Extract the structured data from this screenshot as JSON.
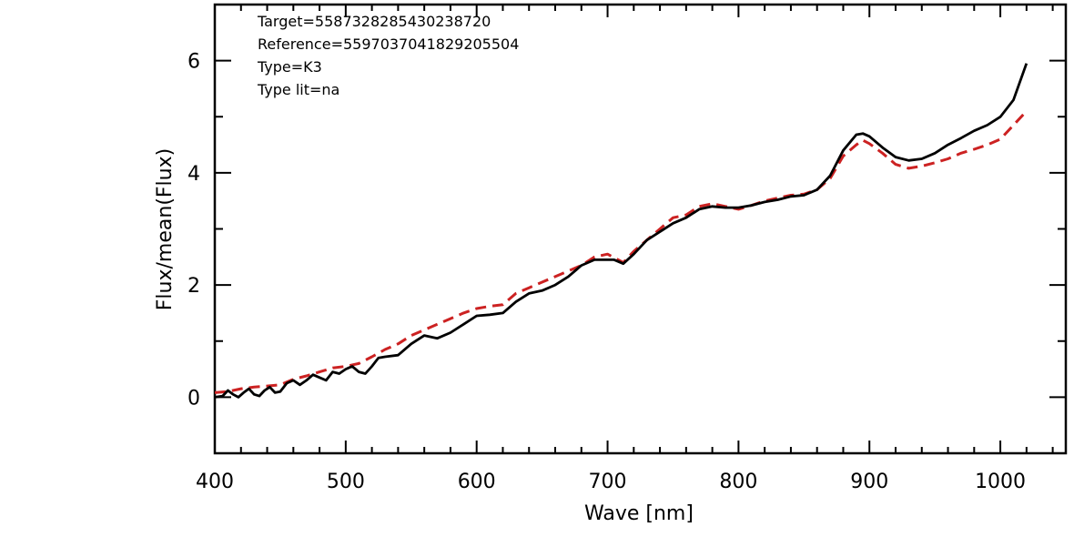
{
  "chart_data": {
    "type": "line",
    "title": "",
    "xlabel": "Wave [nm]",
    "ylabel": "Flux/mean(Flux)",
    "xlim": [
      400,
      1050
    ],
    "ylim": [
      -1,
      7
    ],
    "x_ticks": [
      400,
      500,
      600,
      700,
      800,
      900,
      1000
    ],
    "y_ticks": [
      0,
      2,
      4,
      6
    ],
    "grid": false,
    "annotations": [
      "Target=5587328285430238720",
      "Reference=5597037041829205504",
      "Type=K3",
      "Type lit=na"
    ],
    "series": [
      {
        "color": "#000000",
        "style": "solid",
        "points": [
          [
            400,
            0.0
          ],
          [
            406,
            0.02
          ],
          [
            410,
            0.12
          ],
          [
            414,
            0.05
          ],
          [
            418,
            0.0
          ],
          [
            422,
            0.08
          ],
          [
            426,
            0.15
          ],
          [
            430,
            0.05
          ],
          [
            434,
            0.02
          ],
          [
            438,
            0.12
          ],
          [
            442,
            0.18
          ],
          [
            446,
            0.08
          ],
          [
            450,
            0.1
          ],
          [
            455,
            0.25
          ],
          [
            460,
            0.3
          ],
          [
            465,
            0.22
          ],
          [
            470,
            0.3
          ],
          [
            475,
            0.4
          ],
          [
            480,
            0.35
          ],
          [
            485,
            0.3
          ],
          [
            490,
            0.45
          ],
          [
            495,
            0.42
          ],
          [
            500,
            0.5
          ],
          [
            505,
            0.55
          ],
          [
            510,
            0.45
          ],
          [
            515,
            0.42
          ],
          [
            520,
            0.55
          ],
          [
            525,
            0.7
          ],
          [
            530,
            0.72
          ],
          [
            540,
            0.75
          ],
          [
            550,
            0.95
          ],
          [
            560,
            1.1
          ],
          [
            570,
            1.05
          ],
          [
            580,
            1.15
          ],
          [
            590,
            1.3
          ],
          [
            600,
            1.45
          ],
          [
            610,
            1.47
          ],
          [
            620,
            1.5
          ],
          [
            630,
            1.7
          ],
          [
            640,
            1.85
          ],
          [
            650,
            1.9
          ],
          [
            660,
            2.0
          ],
          [
            670,
            2.15
          ],
          [
            680,
            2.35
          ],
          [
            690,
            2.45
          ],
          [
            700,
            2.45
          ],
          [
            705,
            2.45
          ],
          [
            712,
            2.38
          ],
          [
            720,
            2.55
          ],
          [
            730,
            2.8
          ],
          [
            740,
            2.95
          ],
          [
            750,
            3.1
          ],
          [
            760,
            3.2
          ],
          [
            770,
            3.35
          ],
          [
            780,
            3.4
          ],
          [
            790,
            3.38
          ],
          [
            800,
            3.38
          ],
          [
            810,
            3.42
          ],
          [
            820,
            3.48
          ],
          [
            830,
            3.52
          ],
          [
            840,
            3.58
          ],
          [
            850,
            3.6
          ],
          [
            860,
            3.7
          ],
          [
            870,
            3.95
          ],
          [
            880,
            4.4
          ],
          [
            890,
            4.68
          ],
          [
            895,
            4.7
          ],
          [
            900,
            4.65
          ],
          [
            910,
            4.45
          ],
          [
            920,
            4.28
          ],
          [
            930,
            4.22
          ],
          [
            940,
            4.25
          ],
          [
            950,
            4.35
          ],
          [
            960,
            4.5
          ],
          [
            970,
            4.62
          ],
          [
            980,
            4.75
          ],
          [
            990,
            4.85
          ],
          [
            1000,
            5.0
          ],
          [
            1010,
            5.3
          ],
          [
            1020,
            5.95
          ]
        ]
      },
      {
        "color": "#cc2222",
        "style": "dashed",
        "points": [
          [
            400,
            0.08
          ],
          [
            410,
            0.1
          ],
          [
            420,
            0.15
          ],
          [
            430,
            0.18
          ],
          [
            440,
            0.2
          ],
          [
            450,
            0.22
          ],
          [
            460,
            0.32
          ],
          [
            470,
            0.38
          ],
          [
            480,
            0.45
          ],
          [
            490,
            0.52
          ],
          [
            500,
            0.55
          ],
          [
            510,
            0.6
          ],
          [
            520,
            0.72
          ],
          [
            530,
            0.85
          ],
          [
            540,
            0.95
          ],
          [
            550,
            1.1
          ],
          [
            560,
            1.2
          ],
          [
            570,
            1.3
          ],
          [
            580,
            1.4
          ],
          [
            590,
            1.5
          ],
          [
            600,
            1.58
          ],
          [
            610,
            1.62
          ],
          [
            620,
            1.65
          ],
          [
            630,
            1.85
          ],
          [
            640,
            1.95
          ],
          [
            650,
            2.05
          ],
          [
            660,
            2.15
          ],
          [
            670,
            2.25
          ],
          [
            680,
            2.35
          ],
          [
            690,
            2.5
          ],
          [
            700,
            2.55
          ],
          [
            712,
            2.4
          ],
          [
            720,
            2.6
          ],
          [
            730,
            2.8
          ],
          [
            740,
            3.0
          ],
          [
            750,
            3.2
          ],
          [
            760,
            3.25
          ],
          [
            770,
            3.4
          ],
          [
            780,
            3.45
          ],
          [
            790,
            3.4
          ],
          [
            800,
            3.35
          ],
          [
            810,
            3.42
          ],
          [
            820,
            3.5
          ],
          [
            830,
            3.55
          ],
          [
            840,
            3.6
          ],
          [
            850,
            3.62
          ],
          [
            860,
            3.7
          ],
          [
            870,
            3.9
          ],
          [
            880,
            4.3
          ],
          [
            890,
            4.5
          ],
          [
            895,
            4.58
          ],
          [
            900,
            4.52
          ],
          [
            910,
            4.35
          ],
          [
            920,
            4.15
          ],
          [
            930,
            4.08
          ],
          [
            940,
            4.12
          ],
          [
            950,
            4.18
          ],
          [
            960,
            4.25
          ],
          [
            970,
            4.35
          ],
          [
            980,
            4.42
          ],
          [
            990,
            4.5
          ],
          [
            1000,
            4.6
          ],
          [
            1010,
            4.85
          ],
          [
            1020,
            5.1
          ]
        ]
      }
    ]
  }
}
